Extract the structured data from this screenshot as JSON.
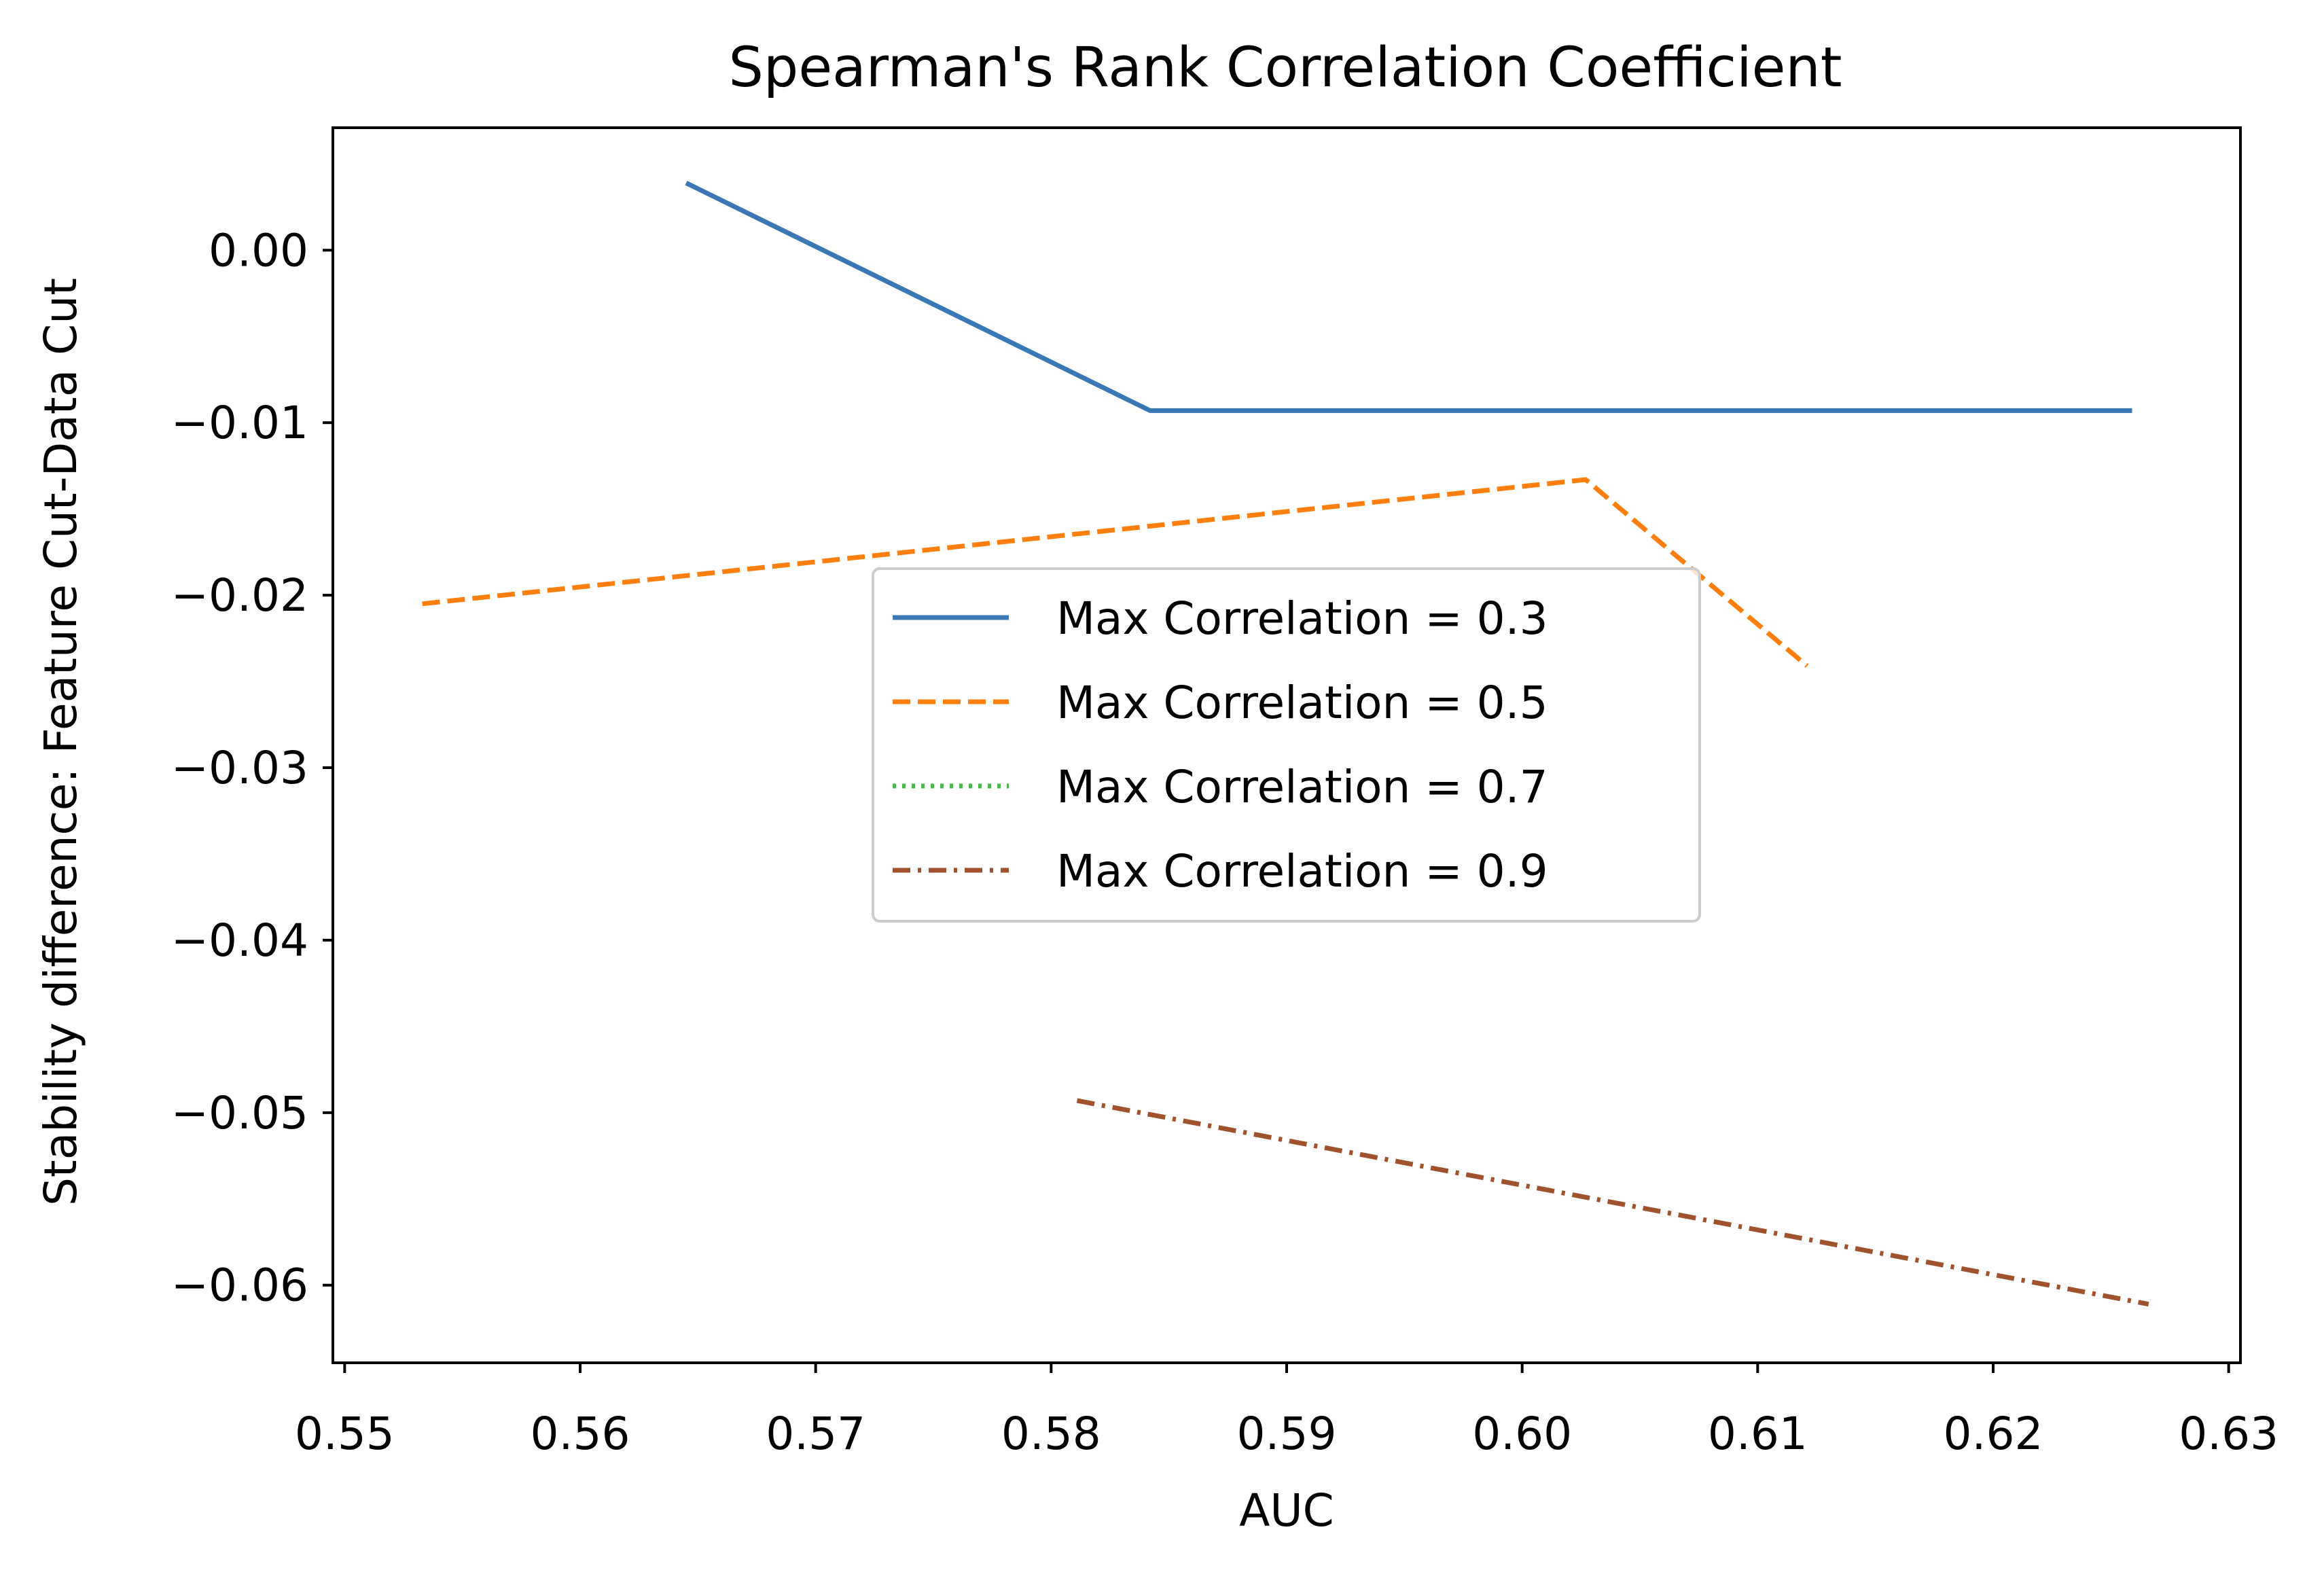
{
  "chart_data": {
    "type": "line",
    "title": "Spearman's Rank Correlation Coefficient",
    "xlabel": "AUC",
    "ylabel": "Stability difference: Feature Cut-Data Cut",
    "xlim": [
      0.5495,
      0.6305
    ],
    "ylim": [
      -0.0645,
      0.0071
    ],
    "xticks": [
      0.55,
      0.56,
      0.57,
      0.58,
      0.59,
      0.6,
      0.61,
      0.62,
      0.63
    ],
    "xtick_labels": [
      "0.55",
      "0.56",
      "0.57",
      "0.58",
      "0.59",
      "0.60",
      "0.61",
      "0.62",
      "0.63"
    ],
    "yticks": [
      0.0,
      -0.01,
      -0.02,
      -0.03,
      -0.04,
      -0.05,
      -0.06
    ],
    "ytick_labels": [
      "0.00",
      "−0.01",
      "−0.02",
      "−0.03",
      "−0.04",
      "−0.05",
      "−0.06"
    ],
    "grid": false,
    "legend_position": "center",
    "series": [
      {
        "name": "Max Correlation = 0.3",
        "color": "#3a78b5",
        "style": "solid",
        "x": [
          0.5645,
          0.5842,
          0.6259
        ],
        "y": [
          0.0039,
          -0.0093,
          -0.0093
        ]
      },
      {
        "name": "Max Correlation = 0.5",
        "color": "#ff7f0e",
        "style": "dashed",
        "x": [
          0.5533,
          0.6027,
          0.6121
        ],
        "y": [
          -0.0205,
          -0.0133,
          -0.0241
        ]
      },
      {
        "name": "Max Correlation = 0.7",
        "color": "#4cb74c",
        "style": "dotted",
        "x": [],
        "y": []
      },
      {
        "name": "Max Correlation = 0.9",
        "color": "#a0522d",
        "style": "dashdot",
        "x": [
          0.5811,
          0.6266
        ],
        "y": [
          -0.0493,
          -0.0611
        ]
      }
    ]
  }
}
